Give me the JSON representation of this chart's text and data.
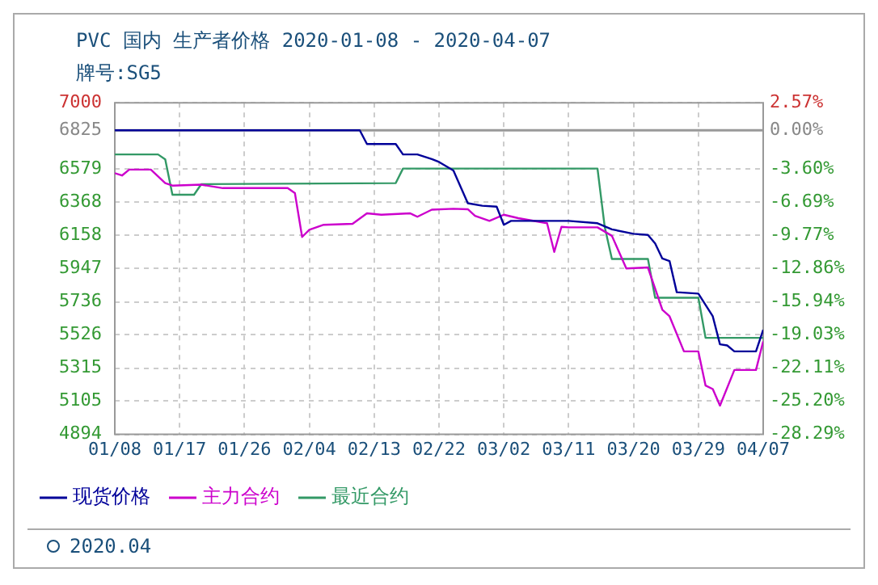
{
  "chart_data": {
    "type": "line",
    "title": "PVC 国内 生产者价格 2020-01-08 - 2020-04-07",
    "subtitle": "牌号:SG5",
    "annotations": [
      "2020.04"
    ],
    "xlim": [
      "2020-01-08",
      "2020-04-07"
    ],
    "xticks": [
      {
        "value": "2020-01-08",
        "label": "01/08"
      },
      {
        "value": "2020-01-17",
        "label": "01/17"
      },
      {
        "value": "2020-01-26",
        "label": "01/26"
      },
      {
        "value": "2020-02-04",
        "label": "02/04"
      },
      {
        "value": "2020-02-13",
        "label": "02/13"
      },
      {
        "value": "2020-02-22",
        "label": "02/22"
      },
      {
        "value": "2020-03-02",
        "label": "03/02"
      },
      {
        "value": "2020-03-11",
        "label": "03/11"
      },
      {
        "value": "2020-03-20",
        "label": "03/20"
      },
      {
        "value": "2020-03-29",
        "label": "03/29"
      },
      {
        "value": "2020-04-07",
        "label": "04/07"
      }
    ],
    "ylim": [
      4894,
      7000
    ],
    "yticks": [
      4894,
      5105,
      5315,
      5526,
      5736,
      5947,
      6158,
      6368,
      6579,
      6825,
      7000
    ],
    "y2lim": [
      -28.29,
      2.57
    ],
    "y2ticks": [
      {
        "value": -28.29,
        "label": "-28.29%"
      },
      {
        "value": -25.2,
        "label": "-25.20%"
      },
      {
        "value": -22.11,
        "label": "-22.11%"
      },
      {
        "value": -19.03,
        "label": "-19.03%"
      },
      {
        "value": -15.94,
        "label": "-15.94%"
      },
      {
        "value": -12.86,
        "label": "-12.86%"
      },
      {
        "value": -9.77,
        "label": "-9.77%"
      },
      {
        "value": -6.69,
        "label": "-6.69%"
      },
      {
        "value": -3.6,
        "label": "-3.60%"
      },
      {
        "value": 0,
        "label": "0.00%"
      },
      {
        "value": 2.57,
        "label": "2.57%"
      }
    ],
    "ref_lines": [
      {
        "axis": "y",
        "value": 6825,
        "color": "#999999"
      }
    ],
    "grid": true,
    "legend": "bottom",
    "line_style": "solid",
    "marker": "none",
    "series": [
      {
        "name": "现货价格",
        "color": "#000099",
        "x": [
          "2020-01-08",
          "2020-02-11",
          "2020-02-12",
          "2020-02-16",
          "2020-02-17",
          "2020-02-19",
          "2020-02-21",
          "2020-02-22",
          "2020-02-24",
          "2020-02-26",
          "2020-02-28",
          "2020-03-01",
          "2020-03-02",
          "2020-03-03",
          "2020-03-11",
          "2020-03-15",
          "2020-03-17",
          "2020-03-20",
          "2020-03-22",
          "2020-03-23",
          "2020-03-24",
          "2020-03-25",
          "2020-03-26",
          "2020-03-29",
          "2020-03-31",
          "2020-04-01",
          "2020-04-02",
          "2020-04-03",
          "2020-04-06",
          "2020-04-07"
        ],
        "values": [
          6825,
          6825,
          6738,
          6738,
          6672,
          6672,
          6643,
          6624,
          6570,
          6362,
          6346,
          6340,
          6225,
          6250,
          6250,
          6235,
          6196,
          6168,
          6161,
          6107,
          6011,
          5995,
          5797,
          5788,
          5644,
          5466,
          5459,
          5421,
          5421,
          5558
        ]
      },
      {
        "name": "主力合约",
        "color": "#cc00cc",
        "x": [
          "2020-01-08",
          "2020-01-09",
          "2020-01-10",
          "2020-01-13",
          "2020-01-15",
          "2020-01-16",
          "2020-01-20",
          "2020-01-23",
          "2020-02-01",
          "2020-02-02",
          "2020-02-03",
          "2020-02-04",
          "2020-02-06",
          "2020-02-10",
          "2020-02-12",
          "2020-02-14",
          "2020-02-18",
          "2020-02-19",
          "2020-02-21",
          "2020-02-24",
          "2020-02-26",
          "2020-02-27",
          "2020-02-29",
          "2020-03-02",
          "2020-03-04",
          "2020-03-08",
          "2020-03-09",
          "2020-03-10",
          "2020-03-11",
          "2020-03-15",
          "2020-03-17",
          "2020-03-19",
          "2020-03-22",
          "2020-03-24",
          "2020-03-25",
          "2020-03-27",
          "2020-03-29",
          "2020-03-30",
          "2020-03-31",
          "2020-04-01",
          "2020-04-03",
          "2020-04-06",
          "2020-04-07"
        ],
        "values": [
          6553,
          6538,
          6576,
          6576,
          6490,
          6474,
          6480,
          6458,
          6458,
          6426,
          6148,
          6193,
          6225,
          6231,
          6298,
          6289,
          6298,
          6276,
          6321,
          6327,
          6324,
          6282,
          6250,
          6289,
          6267,
          6235,
          6053,
          6212,
          6209,
          6209,
          6155,
          5948,
          5954,
          5686,
          5644,
          5421,
          5421,
          5204,
          5182,
          5077,
          5303,
          5303,
          5485
        ]
      },
      {
        "name": "最近合约",
        "color": "#339966",
        "x": [
          "2020-01-08",
          "2020-01-14",
          "2020-01-15",
          "2020-01-16",
          "2020-01-19",
          "2020-01-20",
          "2020-02-16",
          "2020-02-17",
          "2020-03-15",
          "2020-03-16",
          "2020-03-17",
          "2020-03-22",
          "2020-03-23",
          "2020-03-29",
          "2020-03-30",
          "2020-04-07"
        ],
        "values": [
          6672,
          6672,
          6640,
          6416,
          6416,
          6483,
          6490,
          6582,
          6582,
          6212,
          6008,
          6008,
          5762,
          5762,
          5507,
          5507
        ]
      }
    ]
  }
}
